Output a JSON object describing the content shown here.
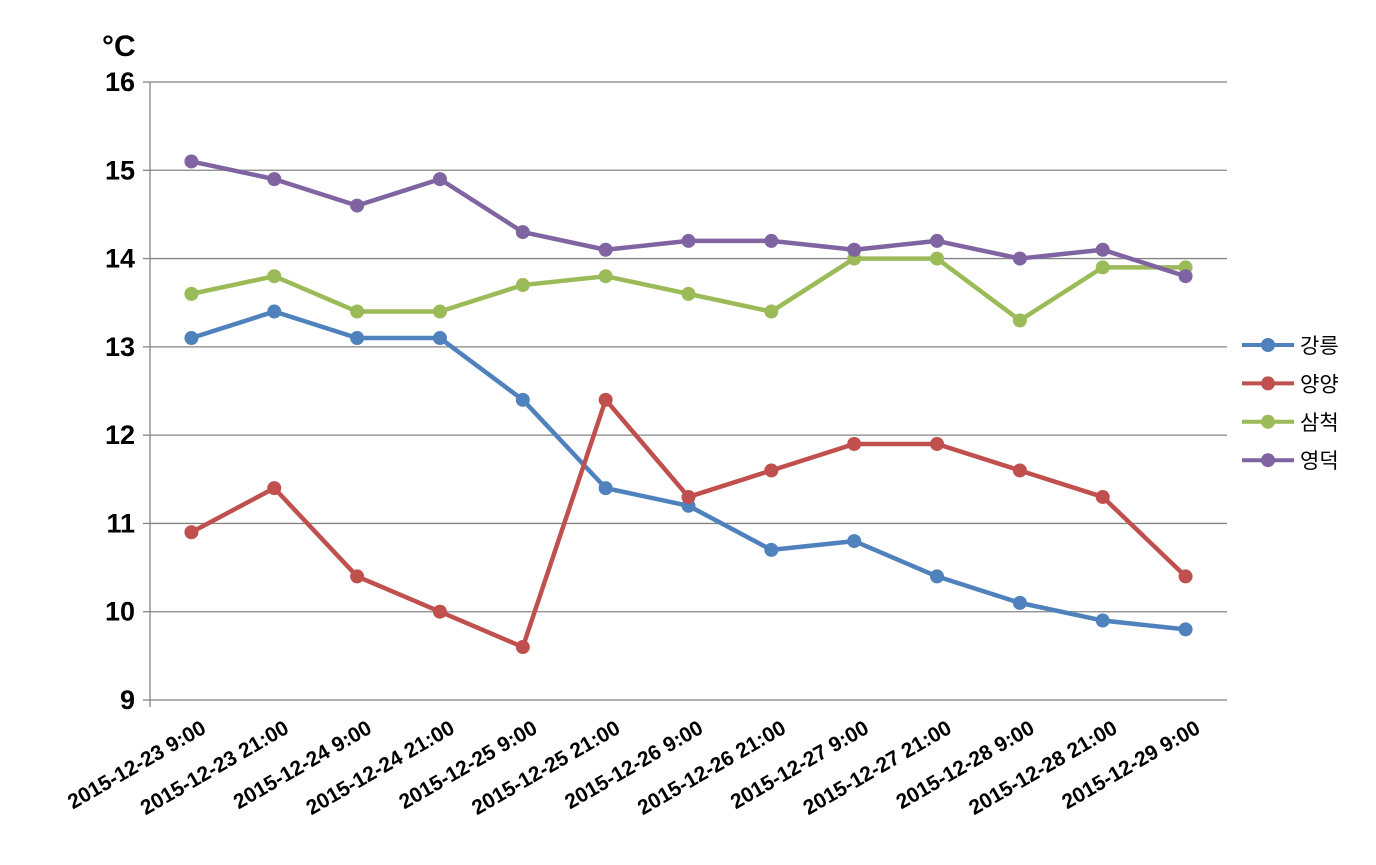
{
  "chart_data": {
    "type": "line",
    "title": "",
    "ylabel": "°C",
    "xlabel": "",
    "ylim": [
      9,
      16
    ],
    "ytick_step": 1,
    "grid": true,
    "legend_position": "right",
    "axis_color": "#848484",
    "text_color": "#000000",
    "categories": [
      "2015-12-23 9:00",
      "2015-12-23 21:00",
      "2015-12-24 9:00",
      "2015-12-24 21:00",
      "2015-12-25 9:00",
      "2015-12-25 21:00",
      "2015-12-26 9:00",
      "2015-12-26 21:00",
      "2015-12-27 9:00",
      "2015-12-27 21:00",
      "2015-12-28 9:00",
      "2015-12-28 21:00",
      "2015-12-29 9:00"
    ],
    "series": [
      {
        "name": "강릉",
        "color": "#4F81BD",
        "values": [
          13.1,
          13.4,
          13.1,
          13.1,
          12.4,
          11.4,
          11.2,
          10.7,
          10.8,
          10.4,
          10.1,
          9.9,
          9.8
        ]
      },
      {
        "name": "양양",
        "color": "#C0504D",
        "values": [
          10.9,
          11.4,
          10.4,
          10.0,
          9.6,
          12.4,
          11.3,
          11.6,
          11.9,
          11.9,
          11.6,
          11.3,
          10.4
        ]
      },
      {
        "name": "삼척",
        "color": "#9BBB59",
        "values": [
          13.6,
          13.8,
          13.4,
          13.4,
          13.7,
          13.8,
          13.6,
          13.4,
          14.0,
          14.0,
          13.3,
          13.9,
          13.9
        ]
      },
      {
        "name": "영덕",
        "color": "#8064A2",
        "values": [
          15.1,
          14.9,
          14.6,
          14.9,
          14.3,
          14.1,
          14.2,
          14.2,
          14.1,
          14.2,
          14.0,
          14.1,
          13.8
        ]
      }
    ]
  }
}
